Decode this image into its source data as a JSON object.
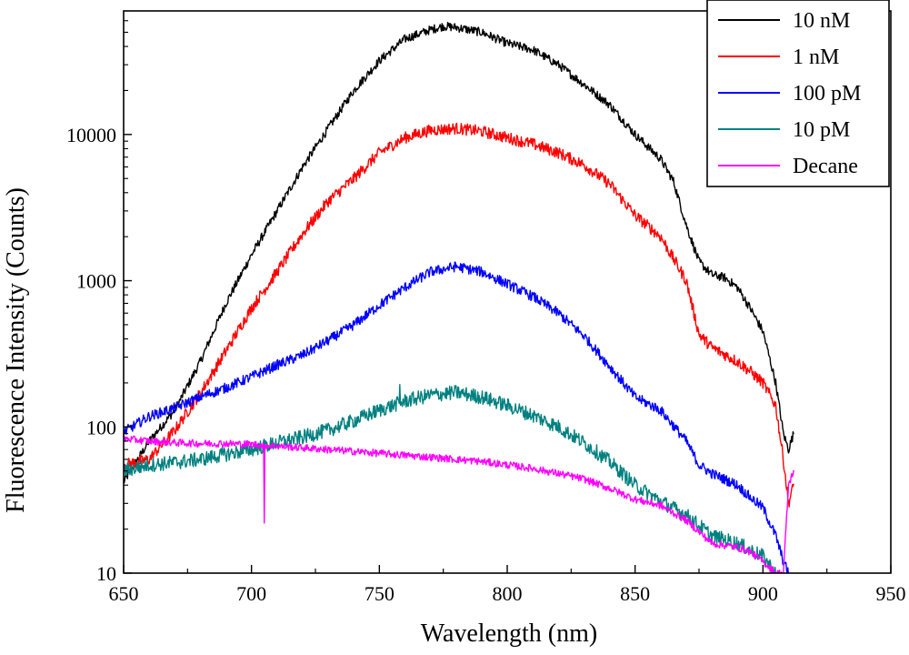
{
  "chart_data": {
    "type": "line",
    "title": "",
    "xlabel": "Wavelength (nm)",
    "ylabel": "Fluorescence Intensity (Counts)",
    "xlim": [
      650,
      950
    ],
    "ylim": [
      10,
      70000
    ],
    "yscale": "log",
    "grid": false,
    "legend_position": "top-right",
    "x_ticks": [
      650,
      700,
      750,
      800,
      850,
      900,
      950
    ],
    "x_tick_labels": [
      "650",
      "700",
      "750",
      "800",
      "850",
      "900",
      "950"
    ],
    "y_ticks": [
      10,
      100,
      1000,
      10000
    ],
    "y_tick_labels": [
      "10",
      "100",
      "1000",
      "10000"
    ],
    "series": [
      {
        "name": "10 nM",
        "color": "#000000",
        "noise": 0.03,
        "x": [
          650,
          660,
          670,
          680,
          690,
          700,
          710,
          720,
          730,
          740,
          750,
          760,
          770,
          775,
          780,
          790,
          800,
          810,
          820,
          830,
          840,
          850,
          860,
          865,
          870,
          875,
          880,
          885,
          890,
          895,
          900,
          905,
          908,
          910,
          912
        ],
        "y": [
          42,
          80,
          130,
          280,
          700,
          1500,
          3000,
          6000,
          11000,
          20000,
          32000,
          45000,
          52000,
          55000,
          54000,
          50000,
          42000,
          38000,
          30000,
          22000,
          16000,
          10000,
          6800,
          4800,
          2400,
          1350,
          1100,
          1050,
          900,
          650,
          450,
          200,
          90,
          70,
          90
        ],
        "spikes": []
      },
      {
        "name": "1 nM",
        "color": "#ff0000",
        "noise": 0.04,
        "x": [
          650,
          660,
          670,
          680,
          690,
          700,
          710,
          720,
          730,
          740,
          750,
          760,
          770,
          780,
          790,
          800,
          810,
          820,
          830,
          840,
          850,
          860,
          870,
          875,
          880,
          890,
          895,
          900,
          905,
          908,
          910,
          912
        ],
        "y": [
          55,
          60,
          95,
          170,
          330,
          650,
          1150,
          2100,
          3500,
          5000,
          7500,
          9500,
          10700,
          11000,
          10500,
          9500,
          8600,
          7500,
          6200,
          4600,
          2800,
          2000,
          1000,
          430,
          350,
          280,
          240,
          200,
          140,
          60,
          30,
          40
        ],
        "spikes": []
      },
      {
        "name": "100 pM",
        "color": "#0000ff",
        "noise": 0.035,
        "x": [
          650,
          660,
          670,
          680,
          690,
          700,
          710,
          720,
          730,
          740,
          750,
          760,
          770,
          780,
          790,
          800,
          810,
          820,
          830,
          840,
          850,
          860,
          870,
          875,
          880,
          890,
          895,
          900,
          905,
          908,
          910
        ],
        "y": [
          92,
          118,
          135,
          160,
          185,
          220,
          265,
          310,
          390,
          500,
          680,
          900,
          1150,
          1250,
          1150,
          950,
          780,
          600,
          420,
          260,
          160,
          130,
          80,
          55,
          48,
          40,
          33,
          28,
          18,
          12,
          10
        ],
        "spikes": []
      },
      {
        "name": "10 pM",
        "color": "#008080",
        "noise": 0.05,
        "x": [
          650,
          660,
          670,
          680,
          690,
          700,
          710,
          720,
          730,
          740,
          750,
          760,
          770,
          780,
          790,
          800,
          810,
          820,
          830,
          840,
          850,
          860,
          870,
          880,
          890,
          900,
          905
        ],
        "y": [
          50,
          55,
          57,
          60,
          65,
          70,
          78,
          85,
          95,
          110,
          130,
          150,
          165,
          172,
          160,
          140,
          120,
          100,
          78,
          58,
          40,
          31,
          25,
          18,
          16,
          13,
          10
        ],
        "spikes": [
          [
            758,
            195
          ]
        ]
      },
      {
        "name": "Decane",
        "color": "#ff00ff",
        "noise": 0.025,
        "x": [
          650,
          660,
          670,
          680,
          690,
          700,
          710,
          720,
          730,
          740,
          750,
          760,
          770,
          780,
          790,
          800,
          810,
          820,
          830,
          840,
          850,
          860,
          870,
          880,
          890,
          895,
          900,
          905,
          908,
          910,
          912
        ],
        "y": [
          83,
          80,
          78,
          77,
          77,
          76,
          74,
          72,
          70,
          68,
          66,
          64,
          62,
          60,
          58,
          55,
          52,
          48,
          44,
          38,
          32,
          29,
          23,
          16,
          15,
          14,
          12,
          10,
          10,
          40,
          50
        ],
        "spikes": [
          [
            705,
            22
          ]
        ]
      }
    ]
  }
}
